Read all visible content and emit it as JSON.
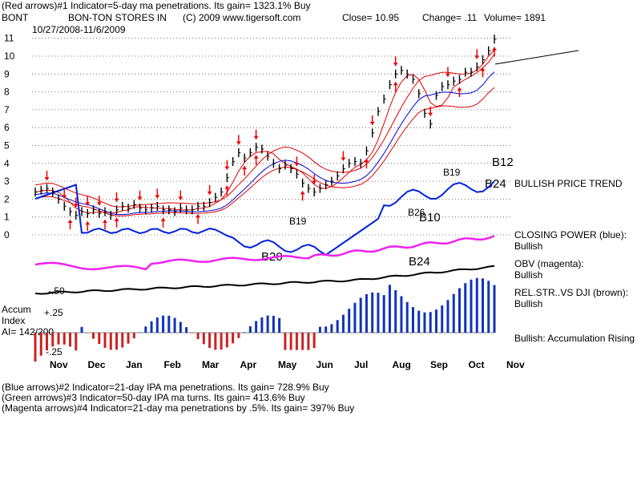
{
  "header": {
    "line1": "(Red arrows)#1 Indicator=5-day ma penetrations. Its gain= 1323.1% Buy",
    "ticker": "BONT",
    "company": "BON-TON STORES IN",
    "copyright": "(C) 2009 www.tigersoft.com",
    "close": "Close=  10.95",
    "change": "Change= .11",
    "volume": "Volume= 1891",
    "date_range": "10/27/2008-11/6/2009"
  },
  "footer": [
    "(Blue arrows)#2 Indicator=21-day IPA ma penetrations. Its gain= 728.9% Buy",
    "(Green arrows)#3 Indicator=50-day IPA ma turns. Its gain= 413.6% Buy",
    "(Magenta arrows)#4 Indicator=21-day ma penetrations by .5%. Its gain= 397% Buy"
  ],
  "status": {
    "trend": "BULLISH PRICE TREND",
    "closing_power_label": "CLOSING POWER (blue):",
    "closing_power_value": "Bullish",
    "obv_label": "OBV (magenta):",
    "obv_value": "Bullish",
    "relstr_label": "REL.STR..VS DJI (brown):",
    "relstr_value": "Bullish",
    "accum_status": "Bullish: Accumulation Rising"
  },
  "accum_labels": {
    "title1": "Accum",
    "title2": "Index",
    "ai": "AI= 142/200",
    "plus": "+.25",
    "minus": "-.25",
    "fifty": "-.50"
  },
  "chart_labels": {
    "b20": "B20",
    "b24_low": "B24",
    "b24_high": "B24",
    "b26": "B26",
    "b10": "B10",
    "b19_a": "B19",
    "b19_b": "B19",
    "b12": "B12"
  },
  "colors": {
    "price": "#000000",
    "ma_red": "#dd0000",
    "ma_blue": "#0000dd",
    "closing_power": "#0022dd",
    "obv": "#ee22ee",
    "relstr": "#000000",
    "accum_pos": "#1133bb",
    "accum_neg": "#cc2222",
    "arrow_red": "#ee0000",
    "grid": "#555555"
  },
  "chart_data": {
    "type": "line",
    "title": "BON-TON STORES IN",
    "xlabel": "",
    "ylabel": "",
    "y_ticks": [
      "11",
      "10",
      "9",
      "8",
      "7",
      "6",
      "5",
      "4",
      "3",
      "2",
      "1",
      "0"
    ],
    "ylim": [
      0,
      11.5
    ],
    "x_month_labels": [
      "Nov",
      "Dec",
      "Jan",
      "Feb",
      "Mar",
      "Apr",
      "May",
      "Jun",
      "Jul",
      "Aug",
      "Sep",
      "Oct",
      "Nov"
    ],
    "grid": true,
    "series": [
      {
        "name": "",
        "values": [
          2.4,
          2.5,
          2.6,
          2.4,
          2.0,
          1.6,
          1.3,
          1.1,
          1.3,
          1.2,
          1.4,
          1.2,
          1.3,
          1.1,
          1.4,
          1.6,
          1.5,
          1.7,
          1.5,
          1.4,
          1.5,
          1.6,
          1.4,
          1.4,
          1.3,
          1.5,
          1.4,
          1.4,
          1.6,
          1.6,
          1.8,
          2.1,
          2.4,
          3.2,
          4.1,
          4.6,
          4.3,
          4.6,
          4.9,
          4.8,
          4.4,
          4.0,
          3.7,
          3.9,
          3.7,
          3.4,
          2.9,
          2.6,
          2.4,
          2.6,
          2.8,
          3.0,
          3.3,
          3.7,
          4.0,
          4.1,
          4.0,
          4.7,
          5.7,
          6.9,
          7.6,
          8.4,
          9.0,
          9.2,
          9.0,
          8.7,
          7.9,
          6.8,
          6.2,
          7.8,
          8.3,
          8.4,
          8.6,
          8.7,
          9.1,
          9.1,
          9.4,
          9.8,
          10.3,
          10.95
        ]
      }
    ]
  }
}
